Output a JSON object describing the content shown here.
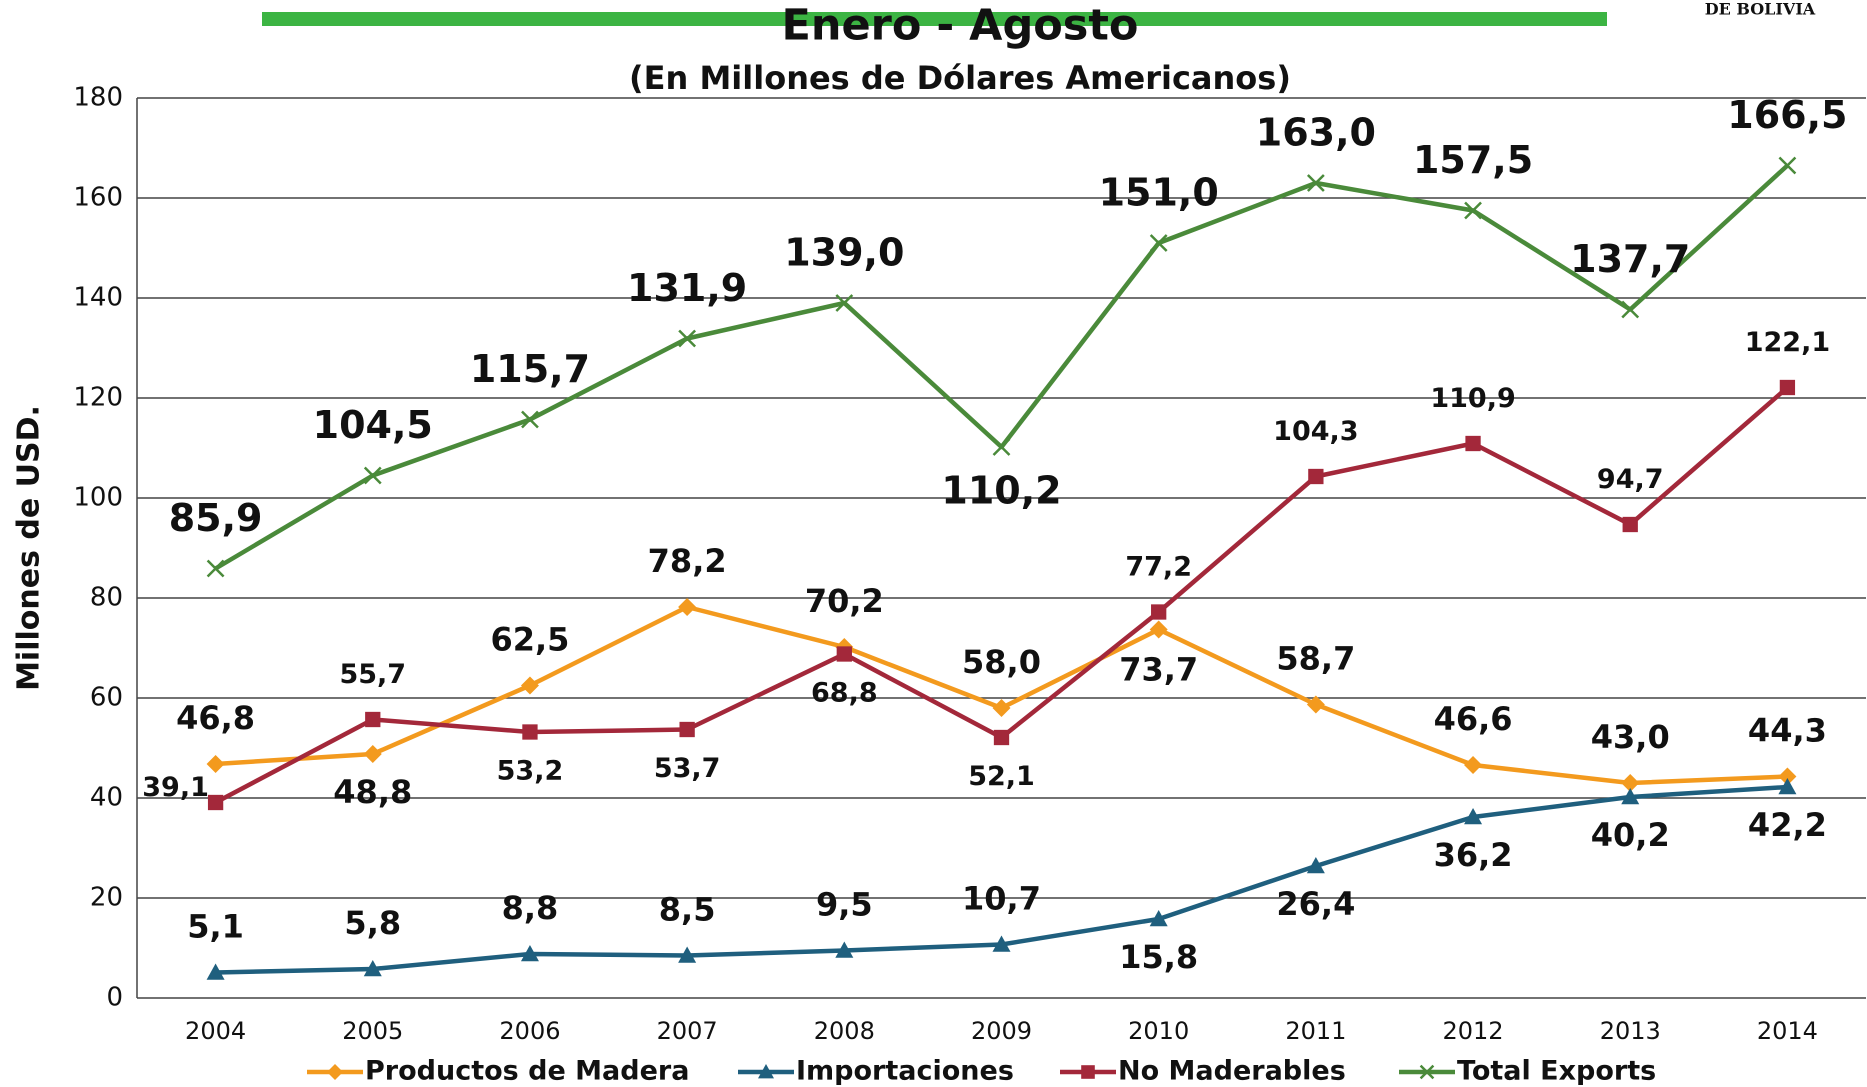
{
  "brand": "DE BOLIVIA",
  "chart_data": {
    "type": "line",
    "title": "Enero - Agosto",
    "subtitle": "(En Millones de Dólares Americanos)",
    "y_label": "Millones de USD.",
    "categories": [
      "2004",
      "2005",
      "2006",
      "2007",
      "2008",
      "2009",
      "2010",
      "2011",
      "2012",
      "2013",
      "2014"
    ],
    "ylim": [
      0,
      180
    ],
    "yticks": [
      0,
      20,
      40,
      60,
      80,
      100,
      120,
      140,
      160,
      180
    ],
    "grid": true,
    "series": [
      {
        "name": "Productos de Madera",
        "color": "#f39a1e",
        "marker": "diamond",
        "values": [
          46.8,
          48.8,
          62.5,
          78.2,
          70.2,
          58.0,
          73.7,
          58.7,
          46.6,
          43.0,
          44.3
        ],
        "value_labels": [
          "46,8",
          "48,8",
          "62,5",
          "78,2",
          "70,2",
          "58,0",
          "73,7",
          "58,7",
          "46,6",
          "43,0",
          "44,3"
        ]
      },
      {
        "name": "Importaciones",
        "color": "#1f5f7e",
        "marker": "triangle",
        "values": [
          5.1,
          5.8,
          8.8,
          8.5,
          9.5,
          10.7,
          15.8,
          26.4,
          36.2,
          40.2,
          42.2
        ],
        "value_labels": [
          "5,1",
          "5,8",
          "8,8",
          "8,5",
          "9,5",
          "10,7",
          "15,8",
          "26,4",
          "36,2",
          "40,2",
          "42,2"
        ]
      },
      {
        "name": "No Maderables",
        "color": "#a3283a",
        "marker": "square",
        "values": [
          39.1,
          55.7,
          53.2,
          53.7,
          68.8,
          52.1,
          77.2,
          104.3,
          110.9,
          94.7,
          122.1
        ],
        "value_labels": [
          "39,1",
          "55,7",
          "53,2",
          "53,7",
          "68,8",
          "52,1",
          "77,2",
          "104,3",
          "110,9",
          "94,7",
          "122,1"
        ]
      },
      {
        "name": "Total Exports",
        "color": "#4a8a3a",
        "marker": "x",
        "values": [
          85.9,
          104.5,
          115.7,
          131.9,
          139.0,
          110.2,
          151.0,
          163.0,
          157.5,
          137.7,
          166.5
        ],
        "value_labels": [
          "85,9",
          "104,5",
          "115,7",
          "131,9",
          "139,0",
          "110,2",
          "151,0",
          "163,0",
          "157,5",
          "137,7",
          "166,5"
        ]
      }
    ]
  }
}
